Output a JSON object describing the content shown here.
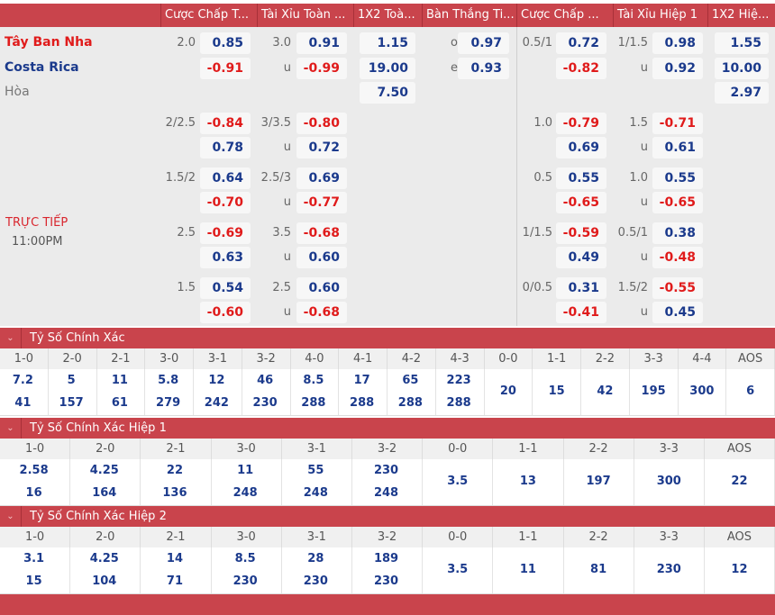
{
  "header": [
    "Cược Chấp T...",
    "Tài Xỉu Toàn ...",
    "1X2 Toà...",
    "Bàn Thắng Ti...",
    "Cược Chấp ...",
    "Tài Xỉu Hiệp 1",
    "1X2 Hiệ..."
  ],
  "teams": {
    "home": "Tây Ban Nha",
    "away": "Costa Rica",
    "draw": "Hòa"
  },
  "status": {
    "live": "TRỰC TIẾP",
    "time": "11:00PM"
  },
  "colors": {
    "header": "#c9444c",
    "positive": "#1b3a8c",
    "negative": "#e01b1b",
    "home": "#e01b1b",
    "away": "#1b3a8c"
  },
  "main": {
    "hdp": {
      "line": "2.0",
      "home": "0.85",
      "away": "-0.91"
    },
    "ou": {
      "line": "3.0",
      "over": "0.91",
      "ulabel": "u",
      "under": "-0.99"
    },
    "x12": {
      "home": "1.15",
      "away": "19.00",
      "draw": "7.50"
    },
    "btts": {
      "olabel": "o",
      "odd": "0.97",
      "elabel": "e",
      "even": "0.93"
    },
    "h1hdp": {
      "line": "0.5/1",
      "home": "0.72",
      "away": "-0.82"
    },
    "h1ou": {
      "line": "1/1.5",
      "over": "0.98",
      "ulabel": "u",
      "under": "0.92"
    },
    "h1x12": {
      "home": "1.55",
      "away": "10.00",
      "draw": "2.97"
    }
  },
  "extra": [
    {
      "hdp": {
        "line": "2/2.5",
        "a": "-0.84",
        "b": "0.78"
      },
      "ou": {
        "line": "3/3.5",
        "a": "-0.80",
        "u": "u",
        "b": "0.72"
      },
      "h1hdp": {
        "line": "1.0",
        "a": "-0.79",
        "b": "0.69"
      },
      "h1ou": {
        "line": "1.5",
        "a": "-0.71",
        "u": "u",
        "b": "0.61"
      }
    },
    {
      "hdp": {
        "line": "1.5/2",
        "a": "0.64",
        "b": "-0.70"
      },
      "ou": {
        "line": "2.5/3",
        "a": "0.69",
        "u": "u",
        "b": "-0.77"
      },
      "h1hdp": {
        "line": "0.5",
        "a": "0.55",
        "b": "-0.65"
      },
      "h1ou": {
        "line": "1.0",
        "a": "0.55",
        "u": "u",
        "b": "-0.65"
      }
    },
    {
      "hdp": {
        "line": "2.5",
        "a": "-0.69",
        "b": "0.63"
      },
      "ou": {
        "line": "3.5",
        "a": "-0.68",
        "u": "u",
        "b": "0.60"
      },
      "h1hdp": {
        "line": "1/1.5",
        "a": "-0.59",
        "b": "0.49"
      },
      "h1ou": {
        "line": "0.5/1",
        "a": "0.38",
        "u": "u",
        "b": "-0.48"
      }
    },
    {
      "hdp": {
        "line": "1.5",
        "a": "0.54",
        "b": "-0.60"
      },
      "ou": {
        "line": "2.5",
        "a": "0.60",
        "u": "u",
        "b": "-0.68"
      },
      "h1hdp": {
        "line": "0/0.5",
        "a": "0.31",
        "b": "-0.41"
      },
      "h1ou": {
        "line": "1.5/2",
        "a": "-0.55",
        "u": "u",
        "b": "0.45"
      }
    }
  ],
  "correct_score": [
    {
      "title": "Tỷ Số Chính Xác",
      "cols": [
        {
          "s": "1-0",
          "a": "7.2",
          "b": "41"
        },
        {
          "s": "2-0",
          "a": "5",
          "b": "157"
        },
        {
          "s": "2-1",
          "a": "11",
          "b": "61"
        },
        {
          "s": "3-0",
          "a": "5.8",
          "b": "279"
        },
        {
          "s": "3-1",
          "a": "12",
          "b": "242"
        },
        {
          "s": "3-2",
          "a": "46",
          "b": "230"
        },
        {
          "s": "4-0",
          "a": "8.5",
          "b": "288"
        },
        {
          "s": "4-1",
          "a": "17",
          "b": "288"
        },
        {
          "s": "4-2",
          "a": "65",
          "b": "288"
        },
        {
          "s": "4-3",
          "a": "223",
          "b": "288"
        },
        {
          "s": "0-0",
          "m": "20"
        },
        {
          "s": "1-1",
          "m": "15"
        },
        {
          "s": "2-2",
          "m": "42"
        },
        {
          "s": "3-3",
          "m": "195"
        },
        {
          "s": "4-4",
          "m": "300"
        },
        {
          "s": "AOS",
          "m": "6"
        }
      ]
    },
    {
      "title": "Tỷ Số Chính Xác Hiệp 1",
      "cols": [
        {
          "s": "1-0",
          "a": "2.58",
          "b": "16"
        },
        {
          "s": "2-0",
          "a": "4.25",
          "b": "164"
        },
        {
          "s": "2-1",
          "a": "22",
          "b": "136"
        },
        {
          "s": "3-0",
          "a": "11",
          "b": "248"
        },
        {
          "s": "3-1",
          "a": "55",
          "b": "248"
        },
        {
          "s": "3-2",
          "a": "230",
          "b": "248"
        },
        {
          "s": "0-0",
          "m": "3.5"
        },
        {
          "s": "1-1",
          "m": "13"
        },
        {
          "s": "2-2",
          "m": "197"
        },
        {
          "s": "3-3",
          "m": "300"
        },
        {
          "s": "AOS",
          "m": "22"
        }
      ]
    },
    {
      "title": "Tỷ Số Chính Xác Hiệp 2",
      "cols": [
        {
          "s": "1-0",
          "a": "3.1",
          "b": "15"
        },
        {
          "s": "2-0",
          "a": "4.25",
          "b": "104"
        },
        {
          "s": "2-1",
          "a": "14",
          "b": "71"
        },
        {
          "s": "3-0",
          "a": "8.5",
          "b": "230"
        },
        {
          "s": "3-1",
          "a": "28",
          "b": "230"
        },
        {
          "s": "3-2",
          "a": "189",
          "b": "230"
        },
        {
          "s": "0-0",
          "m": "3.5"
        },
        {
          "s": "1-1",
          "m": "11"
        },
        {
          "s": "2-2",
          "m": "81"
        },
        {
          "s": "3-3",
          "m": "230"
        },
        {
          "s": "AOS",
          "m": "12"
        }
      ]
    }
  ]
}
